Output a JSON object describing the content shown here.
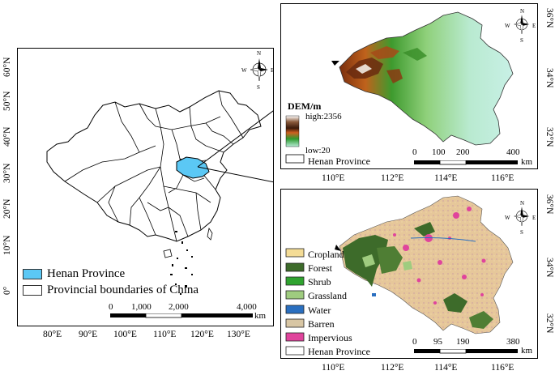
{
  "left_map": {
    "lat_labels": [
      "60°N",
      "50°N",
      "40°N",
      "30°N",
      "20°N",
      "10°N",
      "0°"
    ],
    "lon_labels": [
      "80°E",
      "90°E",
      "100°E",
      "110°E",
      "120°E",
      "130°E"
    ],
    "legend": [
      {
        "label": "Henan Province",
        "color": "#5bc8f5"
      },
      {
        "label": "Provincial boundaries of China",
        "color": "#ffffff"
      }
    ],
    "scale": {
      "labels": [
        "0",
        "1,000",
        "2,000",
        "4,000"
      ],
      "unit": "km"
    }
  },
  "dem_map": {
    "title": "DEM/m",
    "high_label": "high:2356",
    "low_label": "low:20",
    "boundary_label": "Henan Province",
    "lat_labels": [
      "36°N",
      "34°N",
      "32°N"
    ],
    "lon_labels": [
      "110°E",
      "112°E",
      "114°E",
      "116°E"
    ],
    "scale": {
      "labels": [
        "0",
        "100",
        "200",
        "400"
      ],
      "unit": "km"
    }
  },
  "lulc_map": {
    "legend": [
      {
        "label": "Cropland",
        "color": "#f4dc96"
      },
      {
        "label": "Forest",
        "color": "#3d6b2a"
      },
      {
        "label": "Shrub",
        "color": "#2fa32f"
      },
      {
        "label": "Grassland",
        "color": "#9fcc7f"
      },
      {
        "label": "Water",
        "color": "#2a6fc0"
      },
      {
        "label": "Barren",
        "color": "#d8c6a4"
      },
      {
        "label": "Impervious",
        "color": "#e0449c"
      },
      {
        "label": "Henan Province",
        "color": "#ffffff"
      }
    ],
    "lat_labels": [
      "36°N",
      "34°N",
      "32°N"
    ],
    "lon_labels": [
      "110°E",
      "112°E",
      "114°E",
      "116°E"
    ],
    "scale": {
      "labels": [
        "0",
        "95",
        "190",
        "380"
      ],
      "unit": "km"
    }
  },
  "compass": {
    "n": "N",
    "s": "S",
    "e": "E",
    "w": "W"
  }
}
